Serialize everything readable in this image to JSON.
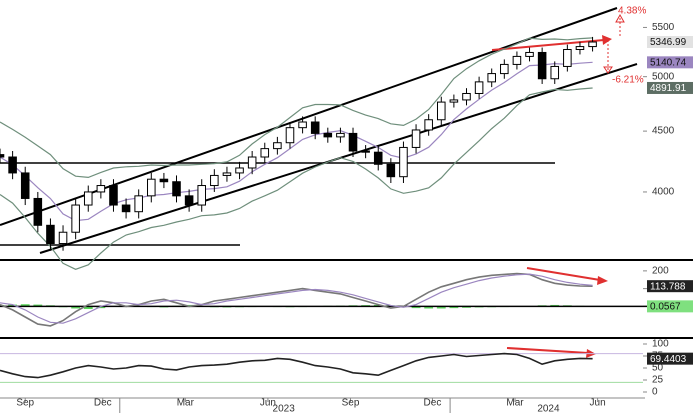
{
  "chart_data": [
    {
      "type": "candlestick",
      "x": [
        0,
        2,
        4,
        6,
        8,
        10,
        12,
        14,
        16,
        18,
        20,
        22,
        24,
        26,
        28,
        30,
        32,
        34,
        36,
        38,
        40,
        42,
        44,
        46,
        48,
        50,
        52,
        54,
        56,
        58,
        60,
        62,
        64,
        66,
        68,
        70,
        72,
        74,
        76,
        78,
        80,
        82,
        84,
        86,
        88,
        90,
        92,
        94
      ],
      "open": [
        4300,
        4280,
        4150,
        3950,
        3750,
        3620,
        3700,
        3900,
        4000,
        4050,
        3900,
        3850,
        3970,
        4100,
        4080,
        3970,
        3900,
        4050,
        4130,
        4150,
        4190,
        4280,
        4350,
        4400,
        4530,
        4580,
        4480,
        4450,
        4480,
        4330,
        4320,
        4220,
        4120,
        4360,
        4510,
        4600,
        4760,
        4780,
        4840,
        4950,
        5030,
        5120,
        5200,
        5240,
        4980,
        5100,
        5270,
        5300
      ],
      "high": [
        4350,
        4330,
        4200,
        4000,
        3800,
        3750,
        3950,
        4050,
        4100,
        4100,
        3950,
        4020,
        4150,
        4150,
        4130,
        4020,
        4100,
        4180,
        4200,
        4240,
        4330,
        4400,
        4450,
        4580,
        4630,
        4630,
        4530,
        4530,
        4530,
        4380,
        4370,
        4270,
        4410,
        4560,
        4650,
        4810,
        4830,
        4890,
        5000,
        5080,
        5170,
        5250,
        5290,
        5290,
        5150,
        5320,
        5350,
        5400
      ],
      "low": [
        4230,
        4100,
        3900,
        3700,
        3570,
        3570,
        3650,
        3850,
        3950,
        3850,
        3800,
        3800,
        3920,
        4030,
        3920,
        3850,
        3850,
        4000,
        4080,
        4100,
        4140,
        4230,
        4300,
        4350,
        4480,
        4430,
        4400,
        4400,
        4280,
        4270,
        4170,
        4070,
        4070,
        4310,
        4460,
        4550,
        4710,
        4730,
        4790,
        4900,
        4980,
        5070,
        5150,
        4930,
        4930,
        5050,
        5220,
        5250
      ],
      "close": [
        4280,
        4150,
        3950,
        3750,
        3620,
        3700,
        3900,
        4000,
        4050,
        3900,
        3850,
        3970,
        4100,
        4080,
        3970,
        3900,
        4050,
        4130,
        4150,
        4190,
        4280,
        4350,
        4400,
        4530,
        4580,
        4480,
        4450,
        4480,
        4330,
        4320,
        4220,
        4120,
        4360,
        4510,
        4600,
        4760,
        4780,
        4840,
        4950,
        5030,
        5120,
        5200,
        5240,
        4980,
        5100,
        5270,
        5300,
        5346.99
      ],
      "up_color": "#ffffff",
      "down_color": "#000000",
      "close_tag": "#e2e2e2",
      "series": [
        {
          "color": "#9b86c0",
          "tag": "#9b86c0",
          "values": [
            4280,
            4215,
            4127,
            4033,
            3950,
            3834,
            3784,
            3794,
            3854,
            3910,
            3940,
            3954,
            3974,
            3980,
            3994,
            4004,
            4020,
            4026,
            4040,
            4084,
            4160,
            4220,
            4274,
            4350,
            4428,
            4468,
            4488,
            4504,
            4464,
            4412,
            4360,
            4294,
            4270,
            4306,
            4362,
            4470,
            4602,
            4698,
            4786,
            4872,
            4944,
            5028,
            5108,
            5114,
            5128,
            5120,
            5132,
            5140.74
          ]
        },
        {
          "color": "#6f8f7c",
          "values": [
            4580,
            4515,
            4447,
            4373,
            4300,
            4184,
            4124,
            4114,
            4154,
            4190,
            4200,
            4204,
            4214,
            4210,
            4214,
            4214,
            4220,
            4226,
            4240,
            4294,
            4390,
            4470,
            4534,
            4620,
            4708,
            4738,
            4738,
            4734,
            4684,
            4642,
            4610,
            4564,
            4550,
            4606,
            4692,
            4830,
            4982,
            5078,
            5156,
            5222,
            5274,
            5328,
            5388,
            5374,
            5378,
            5370,
            5382,
            5389.91
          ]
        },
        {
          "color": "#6f8f7c",
          "tag": "#5d6e64",
          "values": [
            3980,
            3915,
            3807,
            3693,
            3600,
            3484,
            3444,
            3474,
            3554,
            3630,
            3680,
            3704,
            3734,
            3750,
            3774,
            3794,
            3820,
            3826,
            3840,
            3874,
            3930,
            3970,
            4014,
            4080,
            4148,
            4198,
            4238,
            4274,
            4244,
            4182,
            4110,
            4024,
            3990,
            4006,
            4032,
            4110,
            4222,
            4318,
            4416,
            4522,
            4614,
            4728,
            4828,
            4854,
            4878,
            4870,
            4882,
            4891.91
          ]
        }
      ],
      "xlim": [
        0,
        102
      ],
      "ylim": [
        3520,
        5800
      ],
      "log_scale": true,
      "yticks": [
        4000,
        4500,
        5000,
        5500
      ],
      "annotations": [
        "4.38%",
        "-6.21%"
      ]
    },
    {
      "type": "line",
      "series": [
        {
          "color": "#777777",
          "tag": "#222222",
          "values": [
            10,
            -20,
            -60,
            -100,
            -110,
            -80,
            -30,
            10,
            30,
            20,
            0,
            10,
            30,
            40,
            20,
            0,
            10,
            30,
            40,
            50,
            60,
            70,
            80,
            90,
            100,
            90,
            80,
            70,
            50,
            30,
            10,
            -10,
            0,
            40,
            80,
            110,
            130,
            150,
            165,
            175,
            180,
            185,
            180,
            150,
            130,
            120,
            115,
            113.788
          ]
        },
        {
          "color": "#9b86c0",
          "values": [
            20,
            10,
            -20,
            -60,
            -90,
            -95,
            -70,
            -35,
            0,
            20,
            20,
            10,
            15,
            30,
            35,
            25,
            10,
            15,
            30,
            40,
            50,
            60,
            70,
            80,
            90,
            95,
            90,
            80,
            65,
            45,
            25,
            5,
            -5,
            10,
            45,
            80,
            105,
            125,
            145,
            160,
            170,
            178,
            182,
            170,
            150,
            135,
            125,
            118
          ]
        }
      ],
      "histogram": {
        "color": "#5cd65c",
        "tag": "#7fe07f",
        "values": [
          8,
          10,
          12,
          10,
          6,
          -5,
          -12,
          -15,
          -10,
          -3,
          5,
          3,
          -4,
          -6,
          3,
          8,
          2,
          -5,
          -6,
          -5,
          -4,
          -3,
          -4,
          -5,
          -4,
          2,
          3,
          4,
          6,
          7,
          8,
          6,
          -2,
          -10,
          -12,
          -12,
          -10,
          -8,
          -6,
          -5,
          -4,
          -3,
          0,
          6,
          8,
          6,
          3,
          0.0567
        ]
      },
      "ylim": [
        -167,
        250
      ],
      "yticks": [
        0,
        100,
        200
      ]
    },
    {
      "type": "line",
      "series": [
        {
          "color": "#222222",
          "tag": "#222222",
          "values": [
            45,
            38,
            32,
            30,
            35,
            42,
            50,
            55,
            52,
            48,
            50,
            55,
            54,
            48,
            46,
            52,
            55,
            56,
            58,
            62,
            65,
            66,
            70,
            68,
            62,
            55,
            52,
            48,
            40,
            38,
            35,
            45,
            55,
            65,
            72,
            75,
            78,
            74,
            76,
            78,
            80,
            78,
            70,
            58,
            65,
            68,
            70,
            69.4403
          ]
        }
      ],
      "ref_lines": [
        {
          "value": 80,
          "color": "#c7b6e0"
        },
        {
          "value": 20,
          "color": "#9fdc9f"
        }
      ],
      "ylim": [
        -12.5,
        108.3
      ],
      "yticks": [
        0,
        25,
        50,
        75,
        100
      ],
      "xticks": [
        {
          "value": 4,
          "label": "Sep"
        },
        {
          "value": 16.3,
          "label": "Dec"
        },
        {
          "value": 29.4,
          "label": "Mar"
        },
        {
          "value": 42.5,
          "label": "Jun"
        },
        {
          "value": 55.6,
          "label": "Sep"
        },
        {
          "value": 68.6,
          "label": "Dec"
        },
        {
          "value": 81.7,
          "label": "Mar"
        },
        {
          "value": 94.8,
          "label": "Jun"
        }
      ],
      "year_ticks": [
        {
          "value": 45,
          "label": "2023"
        },
        {
          "value": 87,
          "label": "2024"
        }
      ],
      "year_starts": [
        19,
        71.4
      ]
    }
  ]
}
